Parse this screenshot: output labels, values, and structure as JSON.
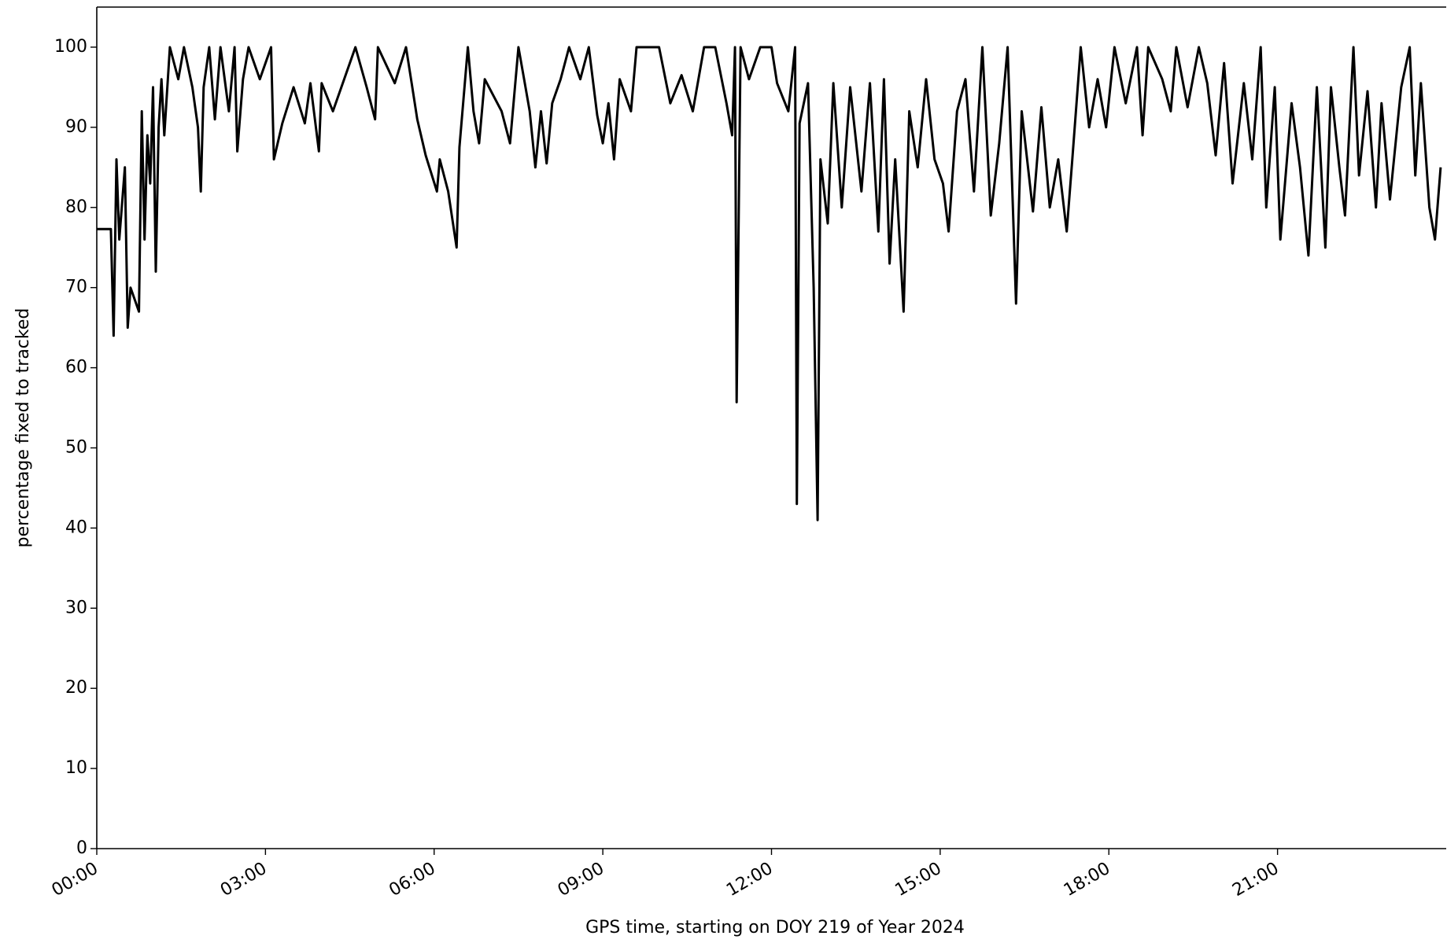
{
  "chart_data": {
    "type": "line",
    "xlabel": "GPS time, starting on DOY 219 of Year 2024",
    "ylabel": "percentage fixed to tracked",
    "xlim": [
      0,
      24
    ],
    "ylim": [
      0,
      105
    ],
    "xticks": [
      {
        "value": 0,
        "label": "00:00"
      },
      {
        "value": 3,
        "label": "03:00"
      },
      {
        "value": 6,
        "label": "06:00"
      },
      {
        "value": 9,
        "label": "09:00"
      },
      {
        "value": 12,
        "label": "12:00"
      },
      {
        "value": 15,
        "label": "15:00"
      },
      {
        "value": 18,
        "label": "18:00"
      },
      {
        "value": 21,
        "label": "21:00"
      }
    ],
    "yticks": [
      0,
      10,
      20,
      30,
      40,
      50,
      60,
      70,
      80,
      90,
      100
    ],
    "grid": false,
    "series": [
      {
        "color": "#000000",
        "x": [
          0,
          0.25,
          0.3,
          0.35,
          0.4,
          0.5,
          0.55,
          0.6,
          0.7,
          0.75,
          0.8,
          0.85,
          0.9,
          0.95,
          1.0,
          1.05,
          1.1,
          1.15,
          1.2,
          1.3,
          1.45,
          1.55,
          1.7,
          1.8,
          1.85,
          1.9,
          2.0,
          2.1,
          2.2,
          2.35,
          2.45,
          2.5,
          2.6,
          2.7,
          2.9,
          3.1,
          3.15,
          3.3,
          3.5,
          3.7,
          3.8,
          3.95,
          4.0,
          4.2,
          4.4,
          4.6,
          4.8,
          4.95,
          5.0,
          5.3,
          5.5,
          5.6,
          5.7,
          5.85,
          6.05,
          6.1,
          6.25,
          6.4,
          6.45,
          6.6,
          6.7,
          6.8,
          6.9,
          7.2,
          7.35,
          7.5,
          7.6,
          7.7,
          7.8,
          7.9,
          8.0,
          8.1,
          8.25,
          8.4,
          8.6,
          8.75,
          8.9,
          9.0,
          9.1,
          9.2,
          9.3,
          9.5,
          9.6,
          10.0,
          10.2,
          10.4,
          10.6,
          10.8,
          11.0,
          11.2,
          11.3,
          11.35,
          11.38,
          11.45,
          11.6,
          11.8,
          12.0,
          12.1,
          12.3,
          12.42,
          12.45,
          12.5,
          12.65,
          12.75,
          12.82,
          12.87,
          13.0,
          13.1,
          13.25,
          13.4,
          13.6,
          13.75,
          13.9,
          14.0,
          14.1,
          14.2,
          14.35,
          14.45,
          14.6,
          14.75,
          14.9,
          15.05,
          15.15,
          15.3,
          15.45,
          15.6,
          15.75,
          15.9,
          16.05,
          16.2,
          16.35,
          16.45,
          16.65,
          16.8,
          16.95,
          17.1,
          17.25,
          17.35,
          17.5,
          17.65,
          17.8,
          17.95,
          18.1,
          18.3,
          18.5,
          18.6,
          18.7,
          18.95,
          19.1,
          19.2,
          19.4,
          19.6,
          19.75,
          19.9,
          20.05,
          20.2,
          20.4,
          20.55,
          20.7,
          20.8,
          20.95,
          21.05,
          21.25,
          21.4,
          21.55,
          21.7,
          21.85,
          21.95,
          22.1,
          22.2,
          22.35,
          22.45,
          22.6,
          22.75,
          22.85,
          23.0,
          23.2,
          23.35,
          23.45,
          23.55,
          23.7,
          23.8,
          23.9
        ],
        "values": [
          77.3,
          77.3,
          64,
          86,
          76,
          85,
          65,
          70,
          68,
          67,
          92,
          76,
          89,
          83,
          95,
          72,
          90,
          96,
          89,
          100,
          96,
          100,
          95,
          90,
          82,
          95,
          100,
          91,
          100,
          92,
          100,
          87,
          96,
          100,
          96,
          100,
          86,
          90.5,
          95,
          90.5,
          95.5,
          87,
          95.5,
          92,
          96,
          100,
          95,
          91,
          100,
          95.5,
          100,
          95.5,
          91,
          86.5,
          82,
          86,
          82,
          75,
          87.5,
          100,
          92,
          88,
          96,
          92,
          88,
          100,
          96,
          92,
          85,
          92,
          85.5,
          93,
          96,
          100,
          96,
          100,
          91.5,
          88,
          93,
          86,
          96,
          92,
          100,
          100,
          93,
          96.5,
          92,
          100,
          100,
          93,
          89,
          100,
          55.7,
          100,
          96,
          100,
          100,
          95.5,
          92,
          100,
          43,
          90.5,
          95.5,
          70,
          41,
          86,
          78,
          95.5,
          80,
          95,
          82,
          95.5,
          77,
          96,
          73,
          86,
          67,
          92,
          85,
          96,
          86,
          83,
          77,
          92,
          96,
          82,
          100,
          79,
          88,
          100,
          68,
          92,
          79.5,
          92.5,
          80,
          86,
          77,
          86,
          100,
          90,
          96,
          90,
          100,
          93,
          100,
          89,
          100,
          96,
          92,
          100,
          92.5,
          100,
          95.5,
          86.5,
          98,
          83,
          95.5,
          86,
          100,
          80,
          95,
          76,
          93,
          85,
          74,
          95,
          75,
          95,
          85,
          79,
          100,
          84,
          94.5,
          80,
          93,
          81,
          95,
          100,
          84,
          95.5,
          80,
          76,
          85
        ]
      }
    ]
  }
}
